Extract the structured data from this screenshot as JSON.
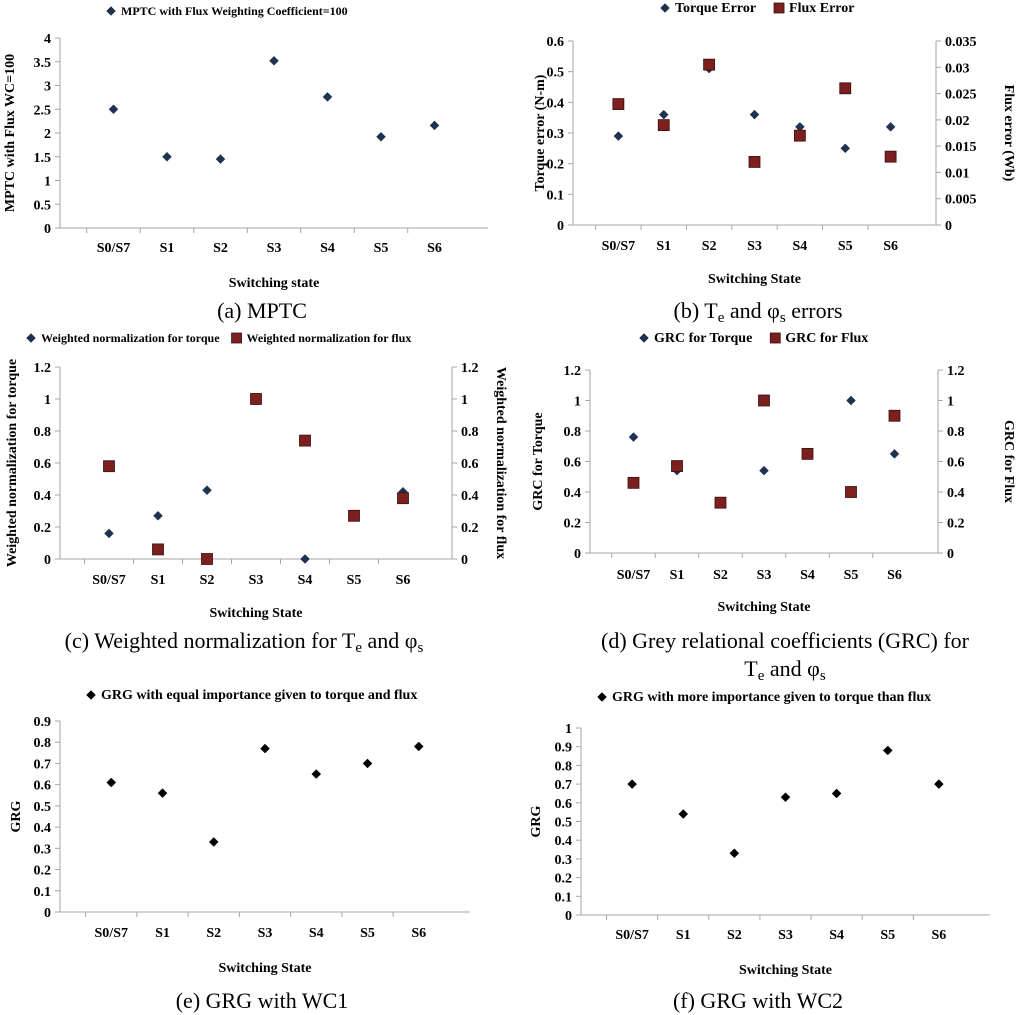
{
  "chart_data": [
    {
      "id": "a",
      "type": "scatter",
      "categories": [
        "S0/S7",
        "S1",
        "S2",
        "S3",
        "S4",
        "S5",
        "S6"
      ],
      "series": [
        {
          "name": "MPTC with Flux Weighting Coefficient=100",
          "marker": "diamond",
          "color": "#1f3350",
          "axis": "left",
          "values": [
            2.5,
            1.5,
            1.45,
            3.52,
            2.76,
            1.92,
            2.16
          ]
        }
      ],
      "ylabel": "MPTC with Flux WC=100",
      "xlabel": "Switching state",
      "ylim": [
        0,
        4
      ],
      "yticks": [
        "0",
        "0.5",
        "1",
        "1.5",
        "2",
        "2.5",
        "3",
        "3.5",
        "4"
      ],
      "caption": "(a) MPTC"
    },
    {
      "id": "b",
      "type": "scatter",
      "categories": [
        "S0/S7",
        "S1",
        "S2",
        "S3",
        "S4",
        "S5",
        "S6"
      ],
      "series": [
        {
          "name": "Torque Error",
          "marker": "diamond",
          "color": "#1f3350",
          "axis": "left",
          "values": [
            0.29,
            0.36,
            0.51,
            0.36,
            0.32,
            0.25,
            0.32
          ]
        },
        {
          "name": "Flux Error",
          "marker": "square",
          "color": "#7b1f1f",
          "axis": "right",
          "values": [
            0.023,
            0.019,
            0.0305,
            0.012,
            0.017,
            0.026,
            0.013
          ]
        }
      ],
      "ylabel": "Torque error (N-m)",
      "y2label": "Flux error (Wb)",
      "xlabel": "Switching State",
      "ylim": [
        0,
        0.6
      ],
      "yticks": [
        "0",
        "0.1",
        "0.2",
        "0.3",
        "0.4",
        "0.5",
        "0.6"
      ],
      "y2lim": [
        0,
        0.035
      ],
      "y2ticks": [
        "0",
        "0.005",
        "0.01",
        "0.015",
        "0.02",
        "0.025",
        "0.03",
        "0.035"
      ],
      "caption": "(b) T",
      "caption_sub": "e",
      "caption_tail": " and φ",
      "caption_sub2": "s",
      "caption_end": " errors"
    },
    {
      "id": "c",
      "type": "scatter",
      "categories": [
        "S0/S7",
        "S1",
        "S2",
        "S3",
        "S4",
        "S5",
        "S6"
      ],
      "series": [
        {
          "name": "Weighted normalization for torque",
          "marker": "diamond",
          "color": "#1f3350",
          "axis": "left",
          "values": [
            0.16,
            0.27,
            0.43,
            null,
            0.0,
            null,
            0.42
          ]
        },
        {
          "name": "Weighted normalization for flux",
          "marker": "square",
          "color": "#7b1f1f",
          "axis": "right",
          "values": [
            0.58,
            0.06,
            0.0,
            1.0,
            0.74,
            0.27,
            0.38
          ]
        }
      ],
      "ylabel": "Weighted normalization for torque",
      "y2label": "Weighted normalization for flux",
      "xlabel": "Switching State",
      "ylim": [
        0,
        1.2
      ],
      "yticks": [
        "0",
        "0.2",
        "0.4",
        "0.6",
        "0.8",
        "1",
        "1.2"
      ],
      "y2lim": [
        0,
        1.2
      ],
      "y2ticks": [
        "0",
        "0.2",
        "0.4",
        "0.6",
        "0.8",
        "1",
        "1.2"
      ],
      "caption": "(c) Weighted normalization for T",
      "caption_sub": "e",
      "caption_tail": " and φ",
      "caption_sub2": "s",
      "caption_end": ""
    },
    {
      "id": "d",
      "type": "scatter",
      "categories": [
        "S0/S7",
        "S1",
        "S2",
        "S3",
        "S4",
        "S5",
        "S6"
      ],
      "series": [
        {
          "name": "GRC for Torque",
          "marker": "diamond",
          "color": "#1f3350",
          "axis": "left",
          "values": [
            0.76,
            0.54,
            null,
            0.54,
            null,
            1.0,
            0.65
          ]
        },
        {
          "name": "GRC for Flux",
          "marker": "square",
          "color": "#7b1f1f",
          "axis": "right",
          "values": [
            0.46,
            0.57,
            0.33,
            1.0,
            0.65,
            0.4,
            0.9
          ]
        }
      ],
      "ylabel": "GRC for Torque",
      "y2label": "GRC for Flux",
      "xlabel": "Switching State",
      "ylim": [
        0,
        1.2
      ],
      "yticks": [
        "0",
        "0.2",
        "0.4",
        "0.6",
        "0.8",
        "1",
        "1.2"
      ],
      "y2lim": [
        0,
        1.2
      ],
      "y2ticks": [
        "0",
        "0.2",
        "0.4",
        "0.6",
        "0.8",
        "1",
        "1.2"
      ],
      "caption": "(d) Grey relational coefficients (GRC) for",
      "caption_line2": "T",
      "caption_sub": "e",
      "caption_tail": " and φ",
      "caption_sub2": "s",
      "caption_end": ""
    },
    {
      "id": "e",
      "type": "scatter",
      "categories": [
        "S0/S7",
        "S1",
        "S2",
        "S3",
        "S4",
        "S5",
        "S6"
      ],
      "series": [
        {
          "name": "GRG with equal importance given to torque and flux",
          "marker": "diamond",
          "color": "#000000",
          "axis": "left",
          "values": [
            0.61,
            0.56,
            0.33,
            0.77,
            0.65,
            0.7,
            0.78
          ]
        }
      ],
      "ylabel": "GRG",
      "xlabel": "Switching State",
      "ylim": [
        0,
        0.9
      ],
      "yticks": [
        "0",
        "0.1",
        "0.2",
        "0.3",
        "0.4",
        "0.5",
        "0.6",
        "0.7",
        "0.8",
        "0.9"
      ],
      "caption": "(e) GRG with WC1"
    },
    {
      "id": "f",
      "type": "scatter",
      "categories": [
        "S0/S7",
        "S1",
        "S2",
        "S3",
        "S4",
        "S5",
        "S6"
      ],
      "series": [
        {
          "name": "GRG with more importance given to torque than flux",
          "marker": "diamond",
          "color": "#000000",
          "axis": "left",
          "values": [
            0.7,
            0.54,
            0.33,
            0.63,
            0.65,
            0.88,
            0.7
          ]
        }
      ],
      "ylabel": "GRG",
      "xlabel": "Switching State",
      "ylim": [
        0,
        1
      ],
      "yticks": [
        "0",
        "0.1",
        "0.2",
        "0.3",
        "0.4",
        "0.5",
        "0.6",
        "0.7",
        "0.8",
        "0.9",
        "1"
      ],
      "caption": "(f) GRG with WC2"
    }
  ]
}
